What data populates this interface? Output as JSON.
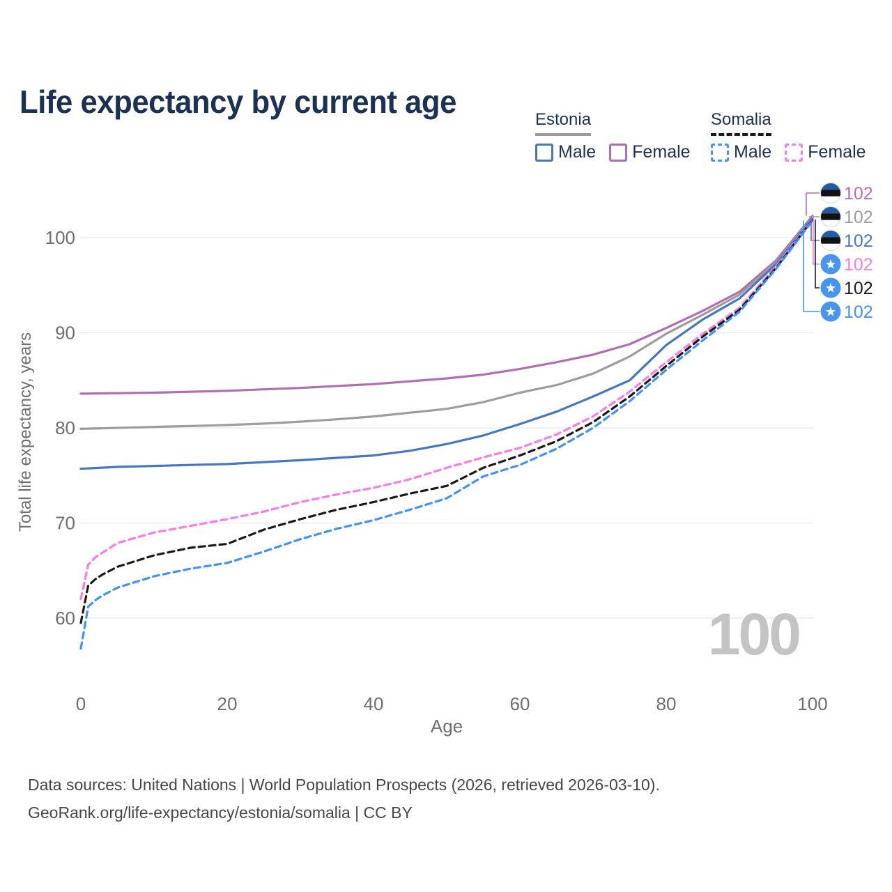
{
  "title": "Life expectancy by current age",
  "legend": {
    "groups": [
      {
        "country": "Estonia",
        "line_style": "solid",
        "underline_color": "#9d9d9d",
        "items": [
          {
            "label": "Male",
            "color": "#4678be",
            "dashed": false
          },
          {
            "label": "Female",
            "color": "#b06fb3",
            "dashed": false
          }
        ]
      },
      {
        "country": "Somalia",
        "line_style": "dashed",
        "underline_color": "#1a1a1a",
        "items": [
          {
            "label": "Male",
            "color": "#4193f5",
            "dashed": true
          },
          {
            "label": "Female",
            "color": "#fa7de3",
            "dashed": true
          }
        ]
      }
    ]
  },
  "chart_data": {
    "type": "line",
    "title": "Life expectancy by current age",
    "xlabel": "Age",
    "ylabel": "Total life expectancy, years",
    "xlim": [
      0,
      100
    ],
    "ylim": [
      55,
      105
    ],
    "x_ticks": [
      0,
      20,
      40,
      60,
      80,
      100
    ],
    "y_ticks": [
      60,
      70,
      80,
      90,
      100
    ],
    "grid": "horizontal",
    "grid_color": "#ececec",
    "tick_color": "#6e6e6e",
    "watermark": "100",
    "flag_colors": {
      "estonia_blue": "#2359a5",
      "estonia_black": "#121212",
      "estonia_white": "#ffffff",
      "estonia_ring": "#d9d9d9",
      "somalia_blue": "#4795ef",
      "somalia_star": "#ffffff"
    },
    "series": [
      {
        "id": "estonia-female",
        "country": "Estonia",
        "sex": "Female",
        "color": "#b06fb3",
        "dashed": false,
        "flag": "estonia",
        "end_label": "102",
        "points": [
          [
            0,
            83.6
          ],
          [
            5,
            83.65
          ],
          [
            10,
            83.7
          ],
          [
            15,
            83.8
          ],
          [
            20,
            83.9
          ],
          [
            25,
            84.05
          ],
          [
            30,
            84.2
          ],
          [
            35,
            84.4
          ],
          [
            40,
            84.6
          ],
          [
            45,
            84.9
          ],
          [
            50,
            85.2
          ],
          [
            55,
            85.6
          ],
          [
            60,
            86.2
          ],
          [
            65,
            86.9
          ],
          [
            70,
            87.7
          ],
          [
            75,
            88.8
          ],
          [
            80,
            90.5
          ],
          [
            85,
            92.3
          ],
          [
            90,
            94.3
          ],
          [
            95,
            97.6
          ],
          [
            100,
            102.3
          ]
        ]
      },
      {
        "id": "estonia-all",
        "country": "Estonia",
        "sex": "All",
        "color": "#9d9d9d",
        "dashed": false,
        "flag": "estonia",
        "end_label": "102",
        "points": [
          [
            0,
            79.9
          ],
          [
            5,
            80.0
          ],
          [
            10,
            80.1
          ],
          [
            15,
            80.2
          ],
          [
            20,
            80.3
          ],
          [
            25,
            80.45
          ],
          [
            30,
            80.65
          ],
          [
            35,
            80.9
          ],
          [
            40,
            81.2
          ],
          [
            45,
            81.6
          ],
          [
            50,
            82.0
          ],
          [
            55,
            82.7
          ],
          [
            60,
            83.7
          ],
          [
            65,
            84.5
          ],
          [
            70,
            85.7
          ],
          [
            75,
            87.5
          ],
          [
            80,
            89.9
          ],
          [
            85,
            91.9
          ],
          [
            90,
            94.0
          ],
          [
            95,
            97.4
          ],
          [
            100,
            102.2
          ]
        ]
      },
      {
        "id": "estonia-male",
        "country": "Estonia",
        "sex": "Male",
        "color": "#4678be",
        "dashed": false,
        "flag": "estonia",
        "end_label": "102",
        "points": [
          [
            0,
            75.7
          ],
          [
            5,
            75.9
          ],
          [
            10,
            76.0
          ],
          [
            15,
            76.1
          ],
          [
            20,
            76.2
          ],
          [
            25,
            76.4
          ],
          [
            30,
            76.6
          ],
          [
            35,
            76.85
          ],
          [
            40,
            77.1
          ],
          [
            45,
            77.6
          ],
          [
            50,
            78.3
          ],
          [
            55,
            79.2
          ],
          [
            60,
            80.4
          ],
          [
            65,
            81.7
          ],
          [
            70,
            83.3
          ],
          [
            75,
            85.0
          ],
          [
            80,
            88.7
          ],
          [
            85,
            91.4
          ],
          [
            90,
            93.6
          ],
          [
            95,
            97.2
          ],
          [
            100,
            102.1
          ]
        ]
      },
      {
        "id": "somalia-female",
        "country": "Somalia",
        "sex": "Female",
        "color": "#fa7de3",
        "dashed": true,
        "flag": "somalia",
        "end_label": "102",
        "points": [
          [
            0,
            62.0
          ],
          [
            1,
            65.6
          ],
          [
            2,
            66.4
          ],
          [
            3,
            66.9
          ],
          [
            5,
            67.9
          ],
          [
            10,
            69.0
          ],
          [
            15,
            69.7
          ],
          [
            20,
            70.4
          ],
          [
            25,
            71.2
          ],
          [
            30,
            72.2
          ],
          [
            35,
            73.0
          ],
          [
            40,
            73.7
          ],
          [
            45,
            74.6
          ],
          [
            50,
            75.8
          ],
          [
            55,
            76.9
          ],
          [
            60,
            77.9
          ],
          [
            65,
            79.3
          ],
          [
            70,
            81.2
          ],
          [
            75,
            83.8
          ],
          [
            80,
            86.9
          ],
          [
            85,
            89.9
          ],
          [
            90,
            92.6
          ],
          [
            95,
            97.0
          ],
          [
            100,
            102.0
          ]
        ]
      },
      {
        "id": "somalia-all",
        "country": "Somalia",
        "sex": "All",
        "color": "#1a1a1a",
        "dashed": true,
        "flag": "somalia",
        "end_label": "102",
        "points": [
          [
            0,
            59.5
          ],
          [
            1,
            63.4
          ],
          [
            2,
            64.1
          ],
          [
            3,
            64.6
          ],
          [
            5,
            65.4
          ],
          [
            10,
            66.6
          ],
          [
            15,
            67.4
          ],
          [
            20,
            67.8
          ],
          [
            25,
            69.3
          ],
          [
            30,
            70.4
          ],
          [
            35,
            71.4
          ],
          [
            40,
            72.2
          ],
          [
            45,
            73.1
          ],
          [
            50,
            73.9
          ],
          [
            55,
            75.8
          ],
          [
            60,
            77.1
          ],
          [
            65,
            78.6
          ],
          [
            70,
            80.6
          ],
          [
            75,
            83.3
          ],
          [
            80,
            86.5
          ],
          [
            85,
            89.6
          ],
          [
            90,
            92.4
          ],
          [
            95,
            96.8
          ],
          [
            100,
            101.9
          ]
        ]
      },
      {
        "id": "somalia-male",
        "country": "Somalia",
        "sex": "Male",
        "color": "#4193f5",
        "dashed": true,
        "flag": "somalia",
        "end_label": "102",
        "points": [
          [
            0,
            56.8
          ],
          [
            1,
            61.2
          ],
          [
            2,
            61.9
          ],
          [
            3,
            62.4
          ],
          [
            5,
            63.2
          ],
          [
            10,
            64.4
          ],
          [
            15,
            65.2
          ],
          [
            20,
            65.8
          ],
          [
            25,
            67.0
          ],
          [
            30,
            68.3
          ],
          [
            35,
            69.4
          ],
          [
            40,
            70.3
          ],
          [
            45,
            71.4
          ],
          [
            50,
            72.6
          ],
          [
            55,
            74.9
          ],
          [
            60,
            76.1
          ],
          [
            65,
            77.8
          ],
          [
            70,
            80.0
          ],
          [
            75,
            82.8
          ],
          [
            80,
            86.1
          ],
          [
            85,
            89.2
          ],
          [
            90,
            92.2
          ],
          [
            95,
            96.7
          ],
          [
            100,
            101.8
          ]
        ]
      }
    ]
  },
  "footer": {
    "line1": "Data sources: United Nations | World Population Prospects (2026, retrieved 2026-03-10).",
    "line2": "GeoRank.org/life-expectancy/estonia/somalia | CC BY"
  }
}
